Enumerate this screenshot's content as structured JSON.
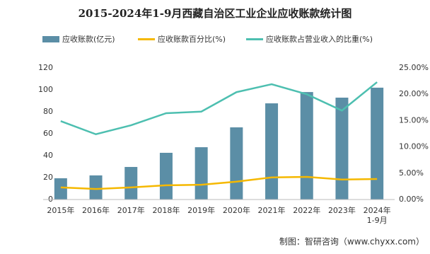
{
  "chart_data": {
    "type": "bar_line",
    "title": "2015-2024年1-9月西藏自治区工业企业应收账款统计图",
    "categories": [
      "2015年",
      "2016年",
      "2017年",
      "2018年",
      "2019年",
      "2020年",
      "2021年",
      "2022年",
      "2023年",
      "2024年\n1-9月"
    ],
    "series": [
      {
        "name": "应收账款(亿元)",
        "type": "bar",
        "color": "#5b8ea6",
        "values": [
          19.4,
          22,
          29.7,
          42.6,
          47.7,
          65.8,
          87.7,
          98,
          92.9,
          102
        ]
      },
      {
        "name": "应收账款百分比(%)",
        "type": "line",
        "axis": "y2",
        "color": "#f5b800",
        "values": [
          2.3,
          2.0,
          2.3,
          2.7,
          2.8,
          3.4,
          4.2,
          4.3,
          3.8,
          3.9
        ]
      },
      {
        "name": "应收账款占营业收入的比重(%)",
        "type": "line",
        "axis": "y2",
        "color": "#4dbfb0",
        "values": [
          14.9,
          12.4,
          14.1,
          16.4,
          16.7,
          20.4,
          21.9,
          20.0,
          16.9,
          22.3
        ]
      }
    ],
    "ylim": [
      0,
      120
    ],
    "yticks": [
      0,
      20,
      40,
      60,
      80,
      100,
      120
    ],
    "y2lim": [
      0,
      25
    ],
    "y2ticks": [
      {
        "value": 0,
        "label": "0.00%"
      },
      {
        "value": 5,
        "label": "5.00%"
      },
      {
        "value": 10,
        "label": "10.00%"
      },
      {
        "value": 15,
        "label": "15.00%"
      },
      {
        "value": 20,
        "label": "20.00%"
      },
      {
        "value": 25,
        "label": "25.00%"
      }
    ],
    "grid": false,
    "source": "制图：智研咨询（www.chyxx.com）"
  }
}
